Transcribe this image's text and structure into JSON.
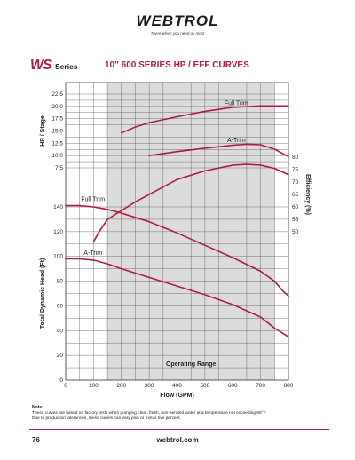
{
  "header": {
    "brand": "WEBTROL",
    "tagline": "There when you need us most",
    "series_badge": "WS",
    "series_word": "Series",
    "title": "10\" 600 SERIES HP / EFF CURVES"
  },
  "footer": {
    "note_heading": "Note:",
    "note_lines": [
      "These curves are based on factory tests when pumping clear, fresh, non-aerated water at a temperature not exceeding 85°F.",
      "Due to production tolerances, these curves can vary plus or minus five percent."
    ],
    "page_number": "76",
    "website": "webtrol.com"
  },
  "chart_data": {
    "type": "line",
    "xlabel": "Flow (GPM)",
    "xlim": [
      0,
      800
    ],
    "x_ticks": [
      "0",
      "100",
      "200",
      "300",
      "400",
      "500",
      "600",
      "700",
      "800"
    ],
    "operating_range": {
      "label": "Operating Range",
      "x": [
        150,
        750
      ]
    },
    "hp_axis": {
      "ylabel": "HP / Stage",
      "ylim": [
        5.0,
        23.3
      ],
      "ticks": [
        "22.5",
        "20.0",
        "17.5",
        "15.0",
        "12.5",
        "10.0",
        "7.5"
      ]
    },
    "head_axis": {
      "ylabel": "Total Dynamic Head (Ft)",
      "ylim": [
        0,
        150
      ],
      "ticks": [
        "0",
        "20",
        "40",
        "60",
        "80",
        "100",
        "120",
        "140"
      ]
    },
    "efficiency_axis": {
      "ylabel": "Efficiency (%)",
      "ylim": [
        46,
        84
      ],
      "ticks": [
        "80",
        "75",
        "70",
        "65",
        "60",
        "55",
        "50"
      ]
    },
    "series": [
      {
        "name": "Full Trim",
        "axis": "hp",
        "x": [
          200,
          250,
          300,
          400,
          500,
          600,
          700,
          800
        ],
        "values": [
          14.6,
          15.8,
          16.7,
          17.9,
          19.0,
          19.8,
          20.1,
          20.1
        ]
      },
      {
        "name": "A-Trim",
        "axis": "hp",
        "x": [
          300,
          400,
          500,
          600,
          650,
          700,
          750,
          800
        ],
        "values": [
          10.0,
          10.8,
          11.5,
          12.1,
          12.3,
          12.2,
          11.3,
          9.8
        ]
      },
      {
        "name": "Full Trim",
        "axis": "head",
        "x": [
          0,
          50,
          100,
          150,
          200,
          300,
          400,
          500,
          600,
          700,
          750,
          780,
          800
        ],
        "values": [
          141,
          141,
          140,
          138,
          135,
          128,
          119,
          109,
          99,
          88,
          80,
          72,
          68
        ]
      },
      {
        "name": "A-Trim",
        "axis": "head",
        "x": [
          0,
          50,
          100,
          150,
          200,
          300,
          400,
          500,
          600,
          650,
          700,
          750,
          800
        ],
        "values": [
          98,
          98,
          97,
          94,
          90,
          83,
          76,
          69,
          61,
          56,
          51,
          42,
          35
        ]
      },
      {
        "name": "",
        "axis": "efficiency",
        "x": [
          100,
          120,
          150,
          200,
          250,
          300,
          350,
          400,
          500,
          600,
          650,
          700,
          750,
          800
        ],
        "values": [
          46,
          50,
          55,
          58.5,
          62,
          65,
          68,
          71,
          74.5,
          76.8,
          77.1,
          76.8,
          75.5,
          73
        ]
      }
    ]
  }
}
